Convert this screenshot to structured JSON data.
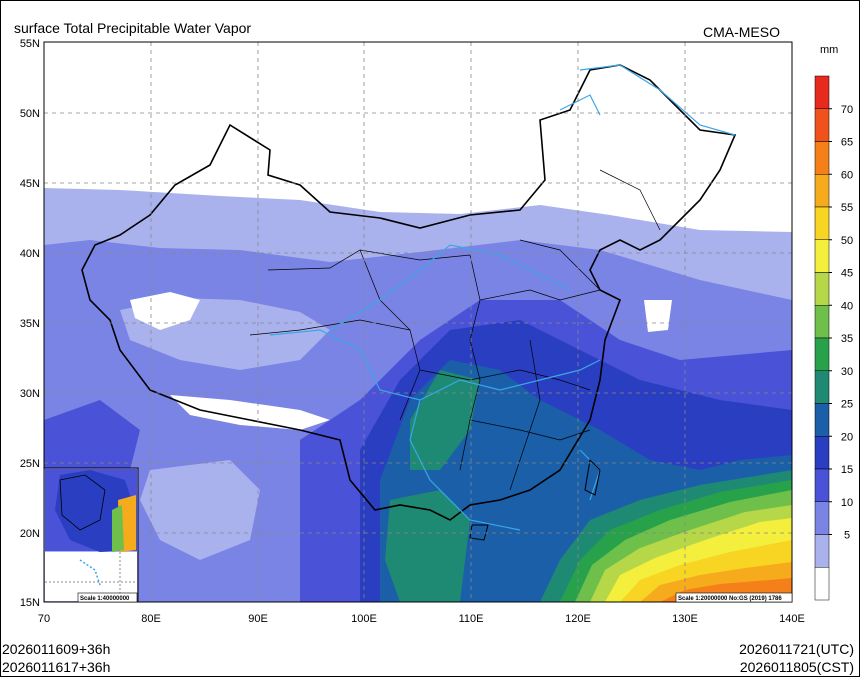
{
  "title": "surface Total Precipitable Water Vapor",
  "model": "CMA-MESO",
  "unit": "mm",
  "lat_labels": [
    "55N",
    "50N",
    "45N",
    "40N",
    "35N",
    "30N",
    "25N",
    "20N",
    "15N"
  ],
  "lon_labels": [
    "70",
    "80E",
    "90E",
    "100E",
    "110E",
    "120E",
    "130E",
    "140E"
  ],
  "colorbar": {
    "labels": [
      "70",
      "65",
      "60",
      "55",
      "50",
      "45",
      "40",
      "35",
      "30",
      "25",
      "20",
      "15",
      "10",
      "5"
    ],
    "colors": [
      "#e8291d",
      "#f0521b",
      "#f57f19",
      "#f6ab1d",
      "#f8d423",
      "#f4ef3c",
      "#b6d848",
      "#6ec04b",
      "#27a24b",
      "#1f8a73",
      "#1a5fa8",
      "#2a3ec2",
      "#4a52d8",
      "#7a84e4",
      "#aab2ee",
      "#ffffff"
    ]
  },
  "inset_scale": "Scale 1:40000000",
  "map_scale": "Scale 1:20000000 No:GS (2019) 1786",
  "footer": {
    "init_utc": "2026011609+36h",
    "init_cst": "2026011617+36h",
    "valid_utc": "2026011721(UTC)",
    "valid_cst": "2026011805(CST)"
  }
}
